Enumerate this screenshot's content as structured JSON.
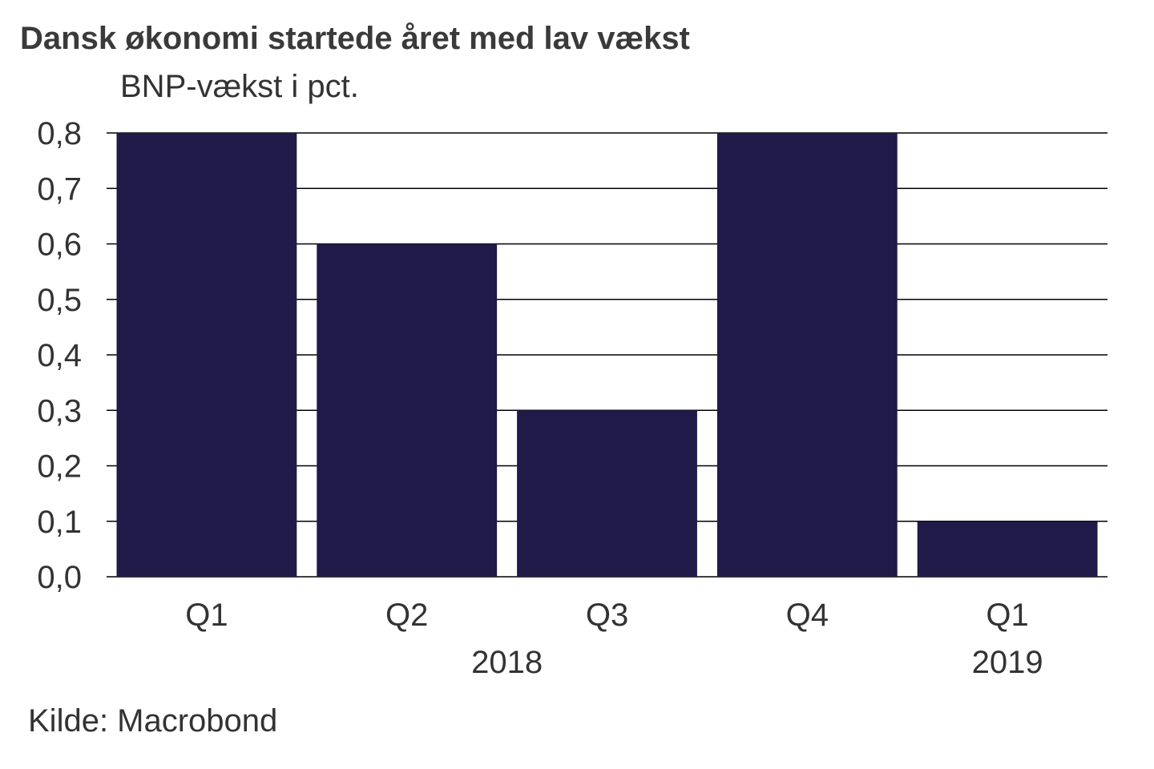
{
  "chart_data": {
    "type": "bar",
    "title": "Dansk økonomi startede året med lav vækst",
    "subtitle": "BNP-vækst i pct.",
    "source": "Kilde: Macrobond",
    "categories": [
      "Q1",
      "Q2",
      "Q3",
      "Q4",
      "Q1"
    ],
    "values": [
      0.8,
      0.6,
      0.3,
      0.8,
      0.1
    ],
    "year_groups": [
      {
        "label": "2018",
        "from": 0,
        "to": 3
      },
      {
        "label": "2019",
        "from": 4,
        "to": 4
      }
    ],
    "y_ticks": [
      "0,0",
      "0,1",
      "0,2",
      "0,3",
      "0,4",
      "0,5",
      "0,6",
      "0,7",
      "0,8"
    ],
    "ylim": [
      0,
      0.8
    ],
    "ystep": 0.1,
    "grid": true,
    "legend": "none",
    "bar_color": "#201a48",
    "grid_color": "#000000"
  }
}
